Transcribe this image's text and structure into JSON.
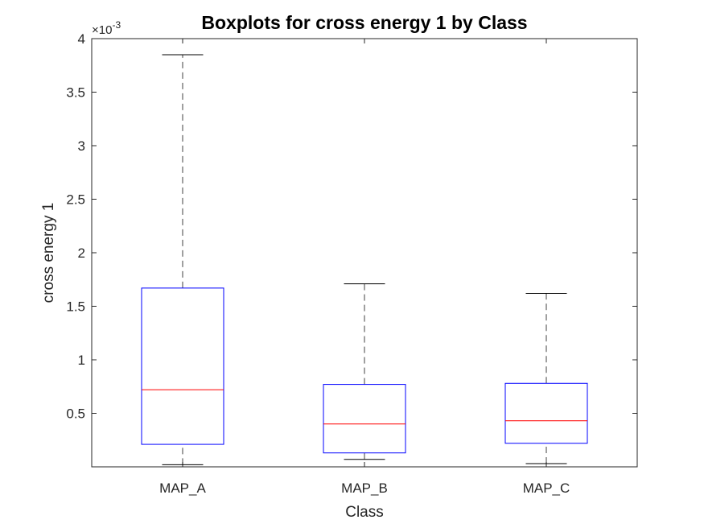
{
  "chart_data": {
    "type": "box",
    "title": "Boxplots for cross energy 1 by Class",
    "xlabel": "Class",
    "ylabel": "cross energy 1",
    "y_exponent_label": {
      "base": "×10",
      "exp": "-3"
    },
    "ylim": [
      0.0,
      4.0
    ],
    "yticks": [
      0.5,
      1,
      1.5,
      2,
      2.5,
      3,
      3.5,
      4
    ],
    "ytick_labels": [
      "0.5",
      "1",
      "1.5",
      "2",
      "2.5",
      "3",
      "3.5",
      "4"
    ],
    "categories": [
      "MAP_A",
      "MAP_B",
      "MAP_C"
    ],
    "boxes": [
      {
        "name": "MAP_A",
        "whisker_low": 0.02,
        "q1": 0.21,
        "median": 0.72,
        "q3": 1.67,
        "whisker_high": 3.85
      },
      {
        "name": "MAP_B",
        "whisker_low": 0.07,
        "q1": 0.13,
        "median": 0.4,
        "q3": 0.77,
        "whisker_high": 1.71
      },
      {
        "name": "MAP_C",
        "whisker_low": 0.03,
        "q1": 0.22,
        "median": 0.43,
        "q3": 0.78,
        "whisker_high": 1.62
      }
    ],
    "colors": {
      "box": "#0000ff",
      "median": "#ff0000",
      "whisker": "#000000",
      "axis": "#262626"
    }
  }
}
